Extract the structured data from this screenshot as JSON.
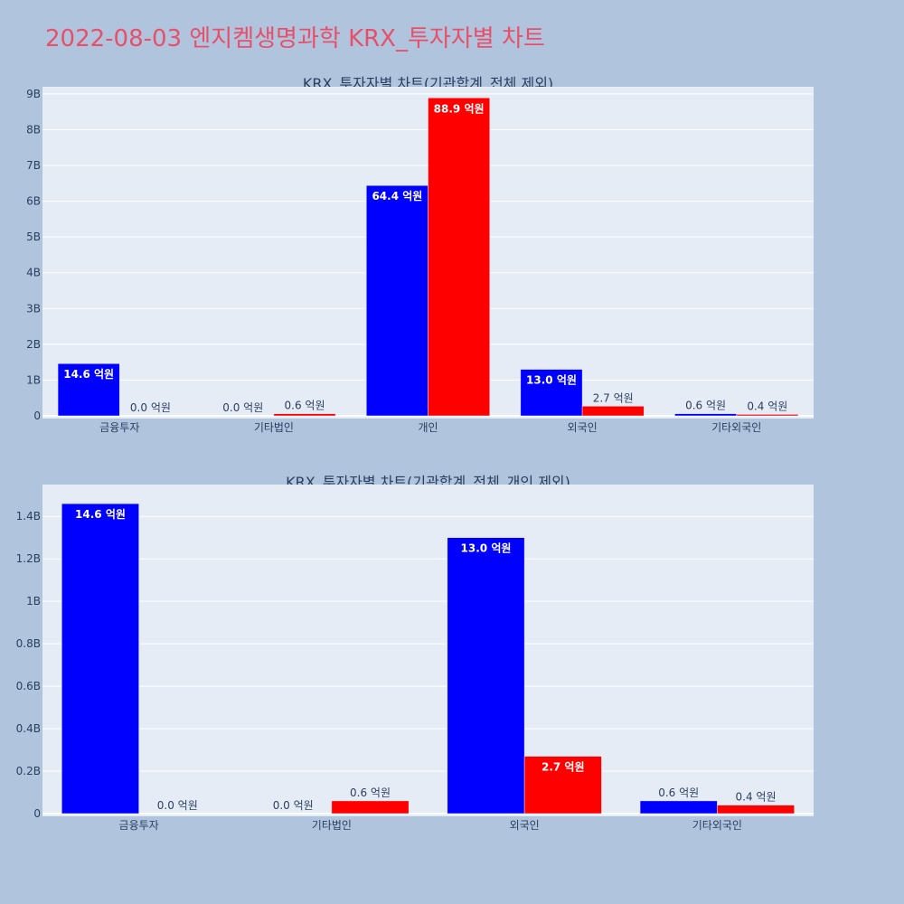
{
  "page_title": "2022-08-03 엔지켐생명과학 KRX_투자자별 차트",
  "colors": {
    "background": "#b0c4de",
    "plot_bg": "#e5ecf6",
    "title": "#e8506a",
    "series_buy": "#0000ff",
    "series_sell": "#ff0000",
    "text": "#2a3f5f"
  },
  "chart_data": [
    {
      "type": "bar",
      "title": "KRX_투자자별 차트(기관합계_전체 제외)",
      "categories": [
        "금융투자",
        "기타법인",
        "개인",
        "외국인",
        "기타외국인"
      ],
      "series": [
        {
          "color": "#0000ff",
          "values": [
            1.46,
            0.0,
            6.44,
            1.3,
            0.06
          ],
          "labels": [
            "14.6 억원",
            "0.0 억원",
            "64.4 억원",
            "13.0 억원",
            "0.6 억원"
          ]
        },
        {
          "color": "#ff0000",
          "values": [
            0.0,
            0.06,
            8.89,
            0.27,
            0.04
          ],
          "labels": [
            "0.0 억원",
            "0.6 억원",
            "88.9 억원",
            "2.7 억원",
            "0.4 억원"
          ]
        }
      ],
      "ylim": [
        0,
        9.2
      ],
      "yticks": [
        0,
        1,
        2,
        3,
        4,
        5,
        6,
        7,
        8,
        9
      ],
      "ytick_labels": [
        "0",
        "1B",
        "2B",
        "3B",
        "4B",
        "5B",
        "6B",
        "7B",
        "8B",
        "9B"
      ],
      "grid": true
    },
    {
      "type": "bar",
      "title": "KRX_투자자별 차트(기관합계_전체_개인 제외)",
      "categories": [
        "금융투자",
        "기타법인",
        "외국인",
        "기타외국인"
      ],
      "series": [
        {
          "color": "#0000ff",
          "values": [
            1.46,
            0.0,
            1.3,
            0.06
          ],
          "labels": [
            "14.6 억원",
            "0.0 억원",
            "13.0 억원",
            "0.6 억원"
          ]
        },
        {
          "color": "#ff0000",
          "values": [
            0.0,
            0.06,
            0.27,
            0.04
          ],
          "labels": [
            "0.0 억원",
            "0.6 억원",
            "2.7 억원",
            "0.4 억원"
          ]
        }
      ],
      "ylim": [
        0,
        1.55
      ],
      "yticks": [
        0,
        0.2,
        0.4,
        0.6,
        0.8,
        1.0,
        1.2,
        1.4
      ],
      "ytick_labels": [
        "0",
        "0.2B",
        "0.4B",
        "0.6B",
        "0.8B",
        "1B",
        "1.2B",
        "1.4B"
      ],
      "grid": true
    }
  ]
}
